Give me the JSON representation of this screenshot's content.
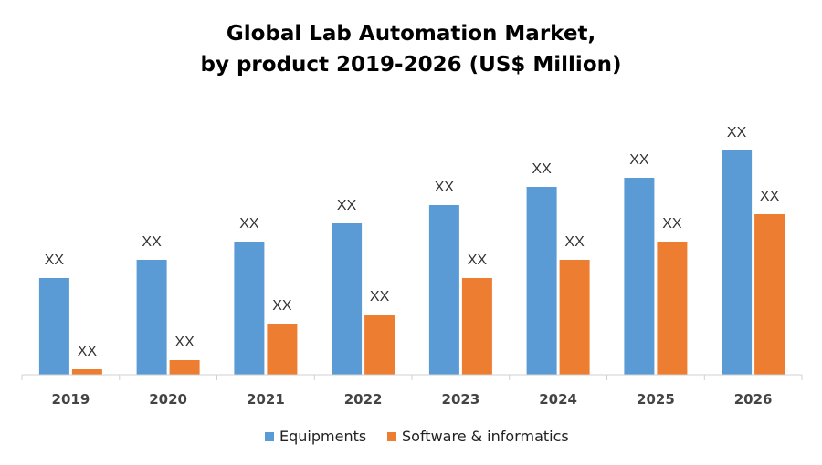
{
  "chart_data": {
    "type": "bar",
    "title_line1": "Global Lab Automation Market,",
    "title_line2": "by product 2019-2026 (US$ Million)",
    "xlabel": "",
    "ylabel": "",
    "categories": [
      "2019",
      "2020",
      "2021",
      "2022",
      "2023",
      "2024",
      "2025",
      "2026"
    ],
    "series": [
      {
        "name": "Equipments",
        "color": "#5B9BD5",
        "values": [
          106,
          126,
          146,
          166,
          186,
          206,
          216,
          246
        ],
        "labels": [
          "XX",
          "XX",
          "XX",
          "XX",
          "XX",
          "XX",
          "XX",
          "XX"
        ]
      },
      {
        "name": "Software & informatics",
        "color": "#ED7D31",
        "values": [
          6,
          16,
          56,
          66,
          106,
          126,
          146,
          176
        ],
        "labels": [
          "XX",
          "XX",
          "XX",
          "XX",
          "XX",
          "XX",
          "XX",
          "XX"
        ]
      }
    ],
    "ylim": [
      0,
      260
    ],
    "grid": false,
    "legend_position": "bottom-center"
  }
}
